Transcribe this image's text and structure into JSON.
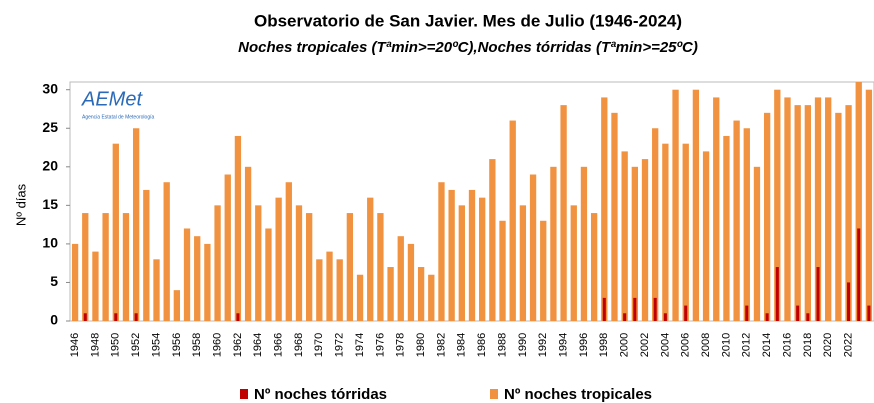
{
  "chart_data": {
    "type": "bar",
    "title": "Observatorio de San Javier.  Mes de Julio (1946-2024)",
    "subtitle": "Noches tropicales (Tªmin>=20ºC),Noches tórridas (Tªmin>=25ºC)",
    "y_label": "Nº días",
    "logo": "AEMet",
    "logo_caption": "Agencia Estatal de Meteorología",
    "categories": [
      "1946",
      null,
      "1948",
      null,
      "1950",
      null,
      "1952",
      null,
      "1954",
      null,
      "1956",
      null,
      "1958",
      null,
      "1960",
      null,
      "1962",
      null,
      "1964",
      null,
      "1966",
      null,
      "1968",
      null,
      "1970",
      null,
      "1972",
      null,
      "1974",
      null,
      "1976",
      null,
      "1978",
      null,
      "1980",
      null,
      "1982",
      null,
      "1984",
      null,
      "1986",
      null,
      "1988",
      null,
      "1990",
      null,
      "1992",
      null,
      "1994",
      null,
      "1996",
      null,
      "1998",
      null,
      "2000",
      null,
      "2002",
      null,
      "2004",
      null,
      "2006",
      null,
      "2008",
      null,
      "2010",
      null,
      "2012",
      null,
      "2014",
      null,
      "2016",
      null,
      "2018",
      null,
      "2020",
      null,
      "2022",
      null,
      null
    ],
    "series": [
      {
        "name": "Nº noches tropicales",
        "color": "#f0923f",
        "values": [
          10,
          14,
          9,
          14,
          23,
          14,
          25,
          17,
          8,
          18,
          4,
          12,
          11,
          10,
          15,
          19,
          24,
          20,
          15,
          12,
          16,
          18,
          15,
          14,
          8,
          9,
          8,
          14,
          6,
          16,
          14,
          7,
          11,
          10,
          7,
          6,
          18,
          17,
          15,
          17,
          16,
          21,
          13,
          26,
          15,
          19,
          13,
          20,
          28,
          15,
          20,
          14,
          29,
          27,
          22,
          20,
          21,
          25,
          23,
          30,
          23,
          30,
          22,
          29,
          24,
          26,
          25,
          20,
          27,
          30,
          29,
          28,
          28,
          29,
          29,
          27,
          28,
          31,
          30
        ]
      },
      {
        "name": "Nº noches tórridas",
        "color": "#c00000",
        "values": [
          0,
          1,
          0,
          0,
          1,
          0,
          1,
          0,
          0,
          0,
          0,
          0,
          0,
          0,
          0,
          0,
          1,
          0,
          0,
          0,
          0,
          0,
          0,
          0,
          0,
          0,
          0,
          0,
          0,
          0,
          0,
          0,
          0,
          0,
          0,
          0,
          0,
          0,
          0,
          0,
          0,
          0,
          0,
          0,
          0,
          0,
          0,
          0,
          0,
          0,
          0,
          0,
          3,
          0,
          1,
          3,
          0,
          3,
          1,
          0,
          2,
          0,
          0,
          0,
          0,
          0,
          2,
          0,
          1,
          7,
          0,
          2,
          1,
          7,
          0,
          0,
          5,
          12,
          2
        ]
      }
    ],
    "ylim": [
      0,
      31
    ],
    "yticks": [
      0,
      5,
      10,
      15,
      20,
      25,
      30
    ]
  }
}
